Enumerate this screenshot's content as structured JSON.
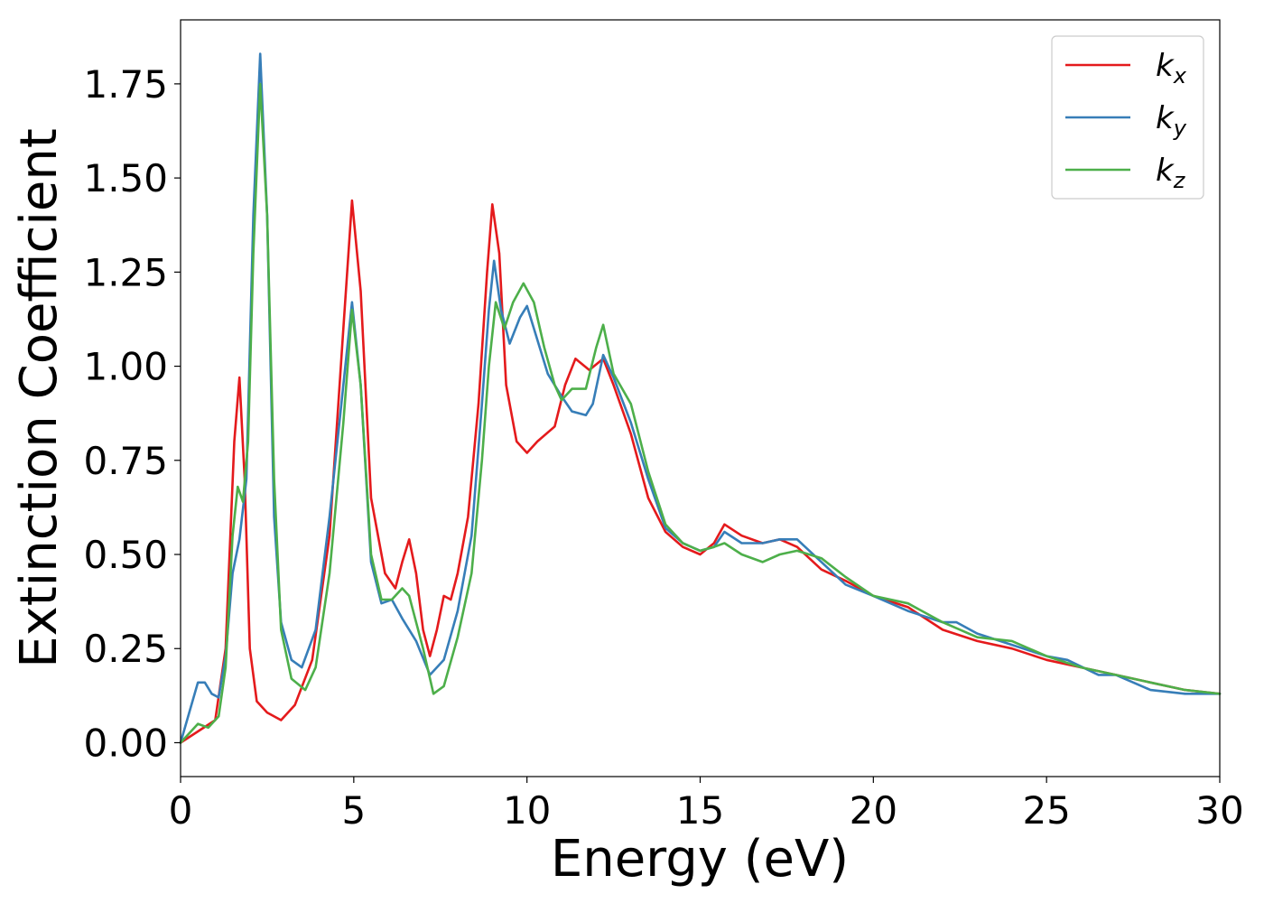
{
  "chart_data": {
    "type": "line",
    "title": "",
    "xlabel": "Energy (eV)",
    "ylabel": "Extinction Coefficient",
    "xlim": [
      0,
      30
    ],
    "ylim": [
      -0.09,
      1.92
    ],
    "xticks": [
      0,
      5,
      10,
      15,
      20,
      25,
      30
    ],
    "xtick_labels": [
      "0",
      "5",
      "10",
      "15",
      "20",
      "25",
      "30"
    ],
    "yticks": [
      0,
      0.25,
      0.5,
      0.75,
      1.0,
      1.25,
      1.5,
      1.75
    ],
    "ytick_labels": [
      "0.00",
      "0.25",
      "0.50",
      "0.75",
      "1.00",
      "1.25",
      "1.50",
      "1.75"
    ],
    "grid": false,
    "legend_position": "top-right",
    "series": [
      {
        "name": "k_x",
        "label_main": "k",
        "label_sub": "x",
        "color": "#e41a1c",
        "points": [
          [
            0,
            0
          ],
          [
            0.5,
            0.03
          ],
          [
            1.0,
            0.06
          ],
          [
            1.3,
            0.25
          ],
          [
            1.55,
            0.8
          ],
          [
            1.7,
            0.97
          ],
          [
            1.85,
            0.7
          ],
          [
            2.0,
            0.25
          ],
          [
            2.2,
            0.11
          ],
          [
            2.5,
            0.08
          ],
          [
            2.9,
            0.06
          ],
          [
            3.3,
            0.1
          ],
          [
            3.8,
            0.22
          ],
          [
            4.3,
            0.55
          ],
          [
            4.7,
            1.1
          ],
          [
            4.95,
            1.44
          ],
          [
            5.2,
            1.2
          ],
          [
            5.5,
            0.65
          ],
          [
            5.9,
            0.45
          ],
          [
            6.2,
            0.41
          ],
          [
            6.4,
            0.48
          ],
          [
            6.6,
            0.54
          ],
          [
            6.8,
            0.45
          ],
          [
            7.0,
            0.3
          ],
          [
            7.2,
            0.23
          ],
          [
            7.4,
            0.3
          ],
          [
            7.6,
            0.39
          ],
          [
            7.8,
            0.38
          ],
          [
            8.0,
            0.45
          ],
          [
            8.3,
            0.6
          ],
          [
            8.6,
            0.9
          ],
          [
            8.85,
            1.25
          ],
          [
            9.0,
            1.43
          ],
          [
            9.2,
            1.3
          ],
          [
            9.4,
            0.95
          ],
          [
            9.7,
            0.8
          ],
          [
            10.0,
            0.77
          ],
          [
            10.3,
            0.8
          ],
          [
            10.8,
            0.84
          ],
          [
            11.1,
            0.95
          ],
          [
            11.4,
            1.02
          ],
          [
            11.8,
            0.99
          ],
          [
            12.2,
            1.02
          ],
          [
            12.5,
            0.95
          ],
          [
            13.0,
            0.82
          ],
          [
            13.5,
            0.65
          ],
          [
            14.0,
            0.56
          ],
          [
            14.5,
            0.52
          ],
          [
            15.0,
            0.5
          ],
          [
            15.4,
            0.53
          ],
          [
            15.7,
            0.58
          ],
          [
            16.2,
            0.55
          ],
          [
            16.8,
            0.53
          ],
          [
            17.3,
            0.54
          ],
          [
            17.8,
            0.52
          ],
          [
            18.5,
            0.46
          ],
          [
            19.2,
            0.43
          ],
          [
            20.0,
            0.39
          ],
          [
            21.0,
            0.36
          ],
          [
            22.0,
            0.3
          ],
          [
            23.0,
            0.27
          ],
          [
            24.0,
            0.25
          ],
          [
            25.0,
            0.22
          ],
          [
            26.0,
            0.2
          ],
          [
            27.0,
            0.18
          ],
          [
            28.0,
            0.16
          ],
          [
            29.0,
            0.14
          ],
          [
            30.0,
            0.13
          ]
        ]
      },
      {
        "name": "k_y",
        "label_main": "k",
        "label_sub": "y",
        "color": "#377eb8",
        "points": [
          [
            0,
            0
          ],
          [
            0.25,
            0.08
          ],
          [
            0.5,
            0.16
          ],
          [
            0.7,
            0.16
          ],
          [
            0.9,
            0.13
          ],
          [
            1.1,
            0.12
          ],
          [
            1.3,
            0.23
          ],
          [
            1.5,
            0.45
          ],
          [
            1.7,
            0.54
          ],
          [
            1.9,
            0.7
          ],
          [
            2.1,
            1.4
          ],
          [
            2.3,
            1.83
          ],
          [
            2.5,
            1.4
          ],
          [
            2.7,
            0.6
          ],
          [
            2.9,
            0.32
          ],
          [
            3.2,
            0.22
          ],
          [
            3.5,
            0.2
          ],
          [
            3.9,
            0.3
          ],
          [
            4.3,
            0.6
          ],
          [
            4.7,
            0.95
          ],
          [
            4.95,
            1.17
          ],
          [
            5.2,
            0.95
          ],
          [
            5.5,
            0.48
          ],
          [
            5.8,
            0.37
          ],
          [
            6.1,
            0.38
          ],
          [
            6.4,
            0.33
          ],
          [
            6.8,
            0.27
          ],
          [
            7.2,
            0.18
          ],
          [
            7.6,
            0.22
          ],
          [
            8.0,
            0.35
          ],
          [
            8.4,
            0.55
          ],
          [
            8.7,
            0.9
          ],
          [
            8.9,
            1.15
          ],
          [
            9.05,
            1.28
          ],
          [
            9.25,
            1.15
          ],
          [
            9.5,
            1.06
          ],
          [
            9.8,
            1.13
          ],
          [
            10.0,
            1.16
          ],
          [
            10.3,
            1.07
          ],
          [
            10.6,
            0.98
          ],
          [
            11.0,
            0.92
          ],
          [
            11.3,
            0.88
          ],
          [
            11.7,
            0.87
          ],
          [
            11.9,
            0.9
          ],
          [
            12.2,
            1.03
          ],
          [
            12.5,
            0.97
          ],
          [
            13.0,
            0.85
          ],
          [
            13.5,
            0.7
          ],
          [
            14.0,
            0.57
          ],
          [
            14.5,
            0.53
          ],
          [
            15.0,
            0.51
          ],
          [
            15.4,
            0.52
          ],
          [
            15.7,
            0.56
          ],
          [
            16.2,
            0.53
          ],
          [
            16.8,
            0.53
          ],
          [
            17.3,
            0.54
          ],
          [
            17.8,
            0.54
          ],
          [
            18.5,
            0.48
          ],
          [
            19.2,
            0.42
          ],
          [
            20.0,
            0.39
          ],
          [
            21.0,
            0.35
          ],
          [
            22.0,
            0.32
          ],
          [
            22.4,
            0.32
          ],
          [
            23.0,
            0.29
          ],
          [
            24.0,
            0.26
          ],
          [
            25.0,
            0.23
          ],
          [
            25.6,
            0.22
          ],
          [
            26.5,
            0.18
          ],
          [
            27.0,
            0.18
          ],
          [
            28.0,
            0.14
          ],
          [
            29.0,
            0.13
          ],
          [
            30.0,
            0.13
          ]
        ]
      },
      {
        "name": "k_z",
        "label_main": "k",
        "label_sub": "z",
        "color": "#4daf4a",
        "points": [
          [
            0,
            0
          ],
          [
            0.3,
            0.03
          ],
          [
            0.5,
            0.05
          ],
          [
            0.8,
            0.04
          ],
          [
            1.1,
            0.07
          ],
          [
            1.3,
            0.2
          ],
          [
            1.5,
            0.55
          ],
          [
            1.65,
            0.68
          ],
          [
            1.8,
            0.64
          ],
          [
            1.95,
            0.8
          ],
          [
            2.1,
            1.3
          ],
          [
            2.3,
            1.75
          ],
          [
            2.5,
            1.4
          ],
          [
            2.7,
            0.7
          ],
          [
            2.9,
            0.3
          ],
          [
            3.2,
            0.17
          ],
          [
            3.6,
            0.14
          ],
          [
            3.9,
            0.2
          ],
          [
            4.3,
            0.45
          ],
          [
            4.7,
            0.85
          ],
          [
            4.95,
            1.15
          ],
          [
            5.2,
            0.95
          ],
          [
            5.5,
            0.5
          ],
          [
            5.8,
            0.38
          ],
          [
            6.1,
            0.38
          ],
          [
            6.4,
            0.41
          ],
          [
            6.6,
            0.39
          ],
          [
            7.0,
            0.25
          ],
          [
            7.3,
            0.13
          ],
          [
            7.6,
            0.15
          ],
          [
            8.0,
            0.28
          ],
          [
            8.4,
            0.45
          ],
          [
            8.7,
            0.75
          ],
          [
            8.9,
            1.0
          ],
          [
            9.1,
            1.17
          ],
          [
            9.35,
            1.1
          ],
          [
            9.6,
            1.17
          ],
          [
            9.9,
            1.22
          ],
          [
            10.2,
            1.17
          ],
          [
            10.5,
            1.05
          ],
          [
            10.8,
            0.95
          ],
          [
            11.0,
            0.91
          ],
          [
            11.3,
            0.94
          ],
          [
            11.7,
            0.94
          ],
          [
            12.0,
            1.05
          ],
          [
            12.2,
            1.11
          ],
          [
            12.5,
            0.98
          ],
          [
            13.0,
            0.9
          ],
          [
            13.5,
            0.72
          ],
          [
            14.0,
            0.58
          ],
          [
            14.5,
            0.53
          ],
          [
            15.0,
            0.51
          ],
          [
            15.4,
            0.52
          ],
          [
            15.7,
            0.53
          ],
          [
            16.2,
            0.5
          ],
          [
            16.8,
            0.48
          ],
          [
            17.3,
            0.5
          ],
          [
            17.8,
            0.51
          ],
          [
            18.5,
            0.49
          ],
          [
            19.2,
            0.44
          ],
          [
            20.0,
            0.39
          ],
          [
            21.0,
            0.37
          ],
          [
            22.0,
            0.32
          ],
          [
            23.0,
            0.28
          ],
          [
            24.0,
            0.27
          ],
          [
            25.0,
            0.23
          ],
          [
            26.0,
            0.2
          ],
          [
            27.0,
            0.18
          ],
          [
            28.0,
            0.16
          ],
          [
            29.0,
            0.14
          ],
          [
            30.0,
            0.13
          ]
        ]
      }
    ]
  }
}
